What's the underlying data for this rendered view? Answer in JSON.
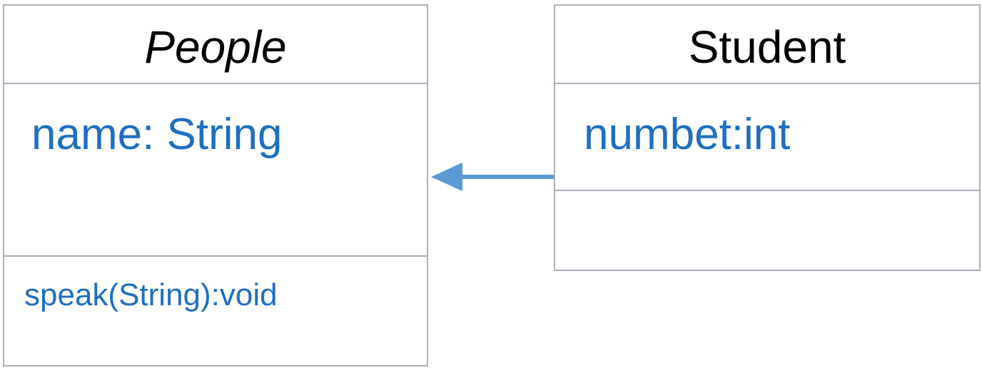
{
  "diagram": {
    "classes": [
      {
        "name": "People",
        "attributes": [
          "name: String"
        ],
        "operations": [
          "speak(String):void"
        ]
      },
      {
        "name": "Student",
        "attributes": [
          "numbet:int"
        ],
        "operations": []
      }
    ],
    "relation": {
      "type": "generalization",
      "from": "Student",
      "to": "People",
      "color": "#5b9bd5"
    },
    "colors": {
      "border": "#aab2bd",
      "member_text": "#1f6fbf",
      "name_text": "#000000"
    }
  }
}
